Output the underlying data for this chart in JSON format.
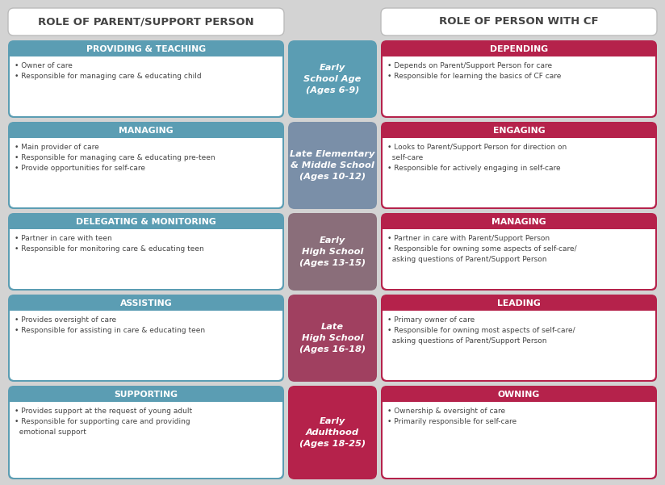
{
  "title_left": "ROLE OF PARENT/SUPPORT PERSON",
  "title_right": "ROLE OF PERSON WITH CF",
  "bg_color": "#d3d3d3",
  "teal_color": "#5b9db3",
  "red_color": "#b5224b",
  "white": "#ffffff",
  "dark_text": "#444444",
  "center_colors": [
    "#5b9db3",
    "#7a8fa8",
    "#8a6e7a",
    "#a04060",
    "#b5224b"
  ],
  "rows": [
    {
      "center_title": "Early\nSchool Age\n(Ages 6-9)",
      "left_header": "PROVIDING & TEACHING",
      "left_bullets": [
        "• Owner of care",
        "• Responsible for managing care & educating child"
      ],
      "right_header": "DEPENDING",
      "right_bullets": [
        "• Depends on Parent/Support Person for care",
        "• Responsible for learning the basics of CF care"
      ]
    },
    {
      "center_title": "Late Elementary\n& Middle School\n(Ages 10-12)",
      "left_header": "MANAGING",
      "left_bullets": [
        "• Main provider of care",
        "• Responsible for managing care & educating pre-teen",
        "• Provide opportunities for self-care"
      ],
      "right_header": "ENGAGING",
      "right_bullets": [
        "• Looks to Parent/Support Person for direction on\n  self-care",
        "• Responsible for actively engaging in self-care"
      ]
    },
    {
      "center_title": "Early\nHigh School\n(Ages 13-15)",
      "left_header": "DELEGATING & MONITORING",
      "left_bullets": [
        "• Partner in care with teen",
        "• Responsible for monitoring care & educating teen"
      ],
      "right_header": "MANAGING",
      "right_bullets": [
        "• Partner in care with Parent/Support Person",
        "• Responsible for owning some aspects of self-care/\n  asking questions of Parent/Support Person"
      ]
    },
    {
      "center_title": "Late\nHigh School\n(Ages 16-18)",
      "left_header": "ASSISTING",
      "left_bullets": [
        "• Provides oversight of care",
        "• Responsible for assisting in care & educating teen"
      ],
      "right_header": "LEADING",
      "right_bullets": [
        "• Primary owner of care",
        "• Responsible for owning most aspects of self-care/\n  asking questions of Parent/Support Person"
      ]
    },
    {
      "center_title": "Early\nAdulthood\n(Ages 18-25)",
      "left_header": "SUPPORTING",
      "left_bullets": [
        "• Provides support at the request of young adult",
        "• Responsible for supporting care and providing\n  emotional support"
      ],
      "right_header": "OWNING",
      "right_bullets": [
        "• Ownership & oversight of care",
        "• Primarily responsible for self-care"
      ]
    }
  ]
}
